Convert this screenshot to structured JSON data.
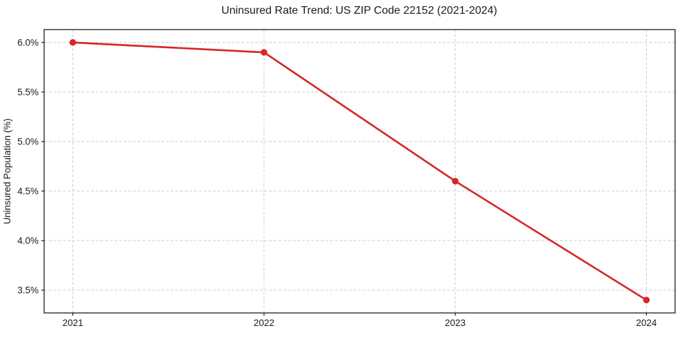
{
  "figure": {
    "title": "Uninsured Rate Trend: US ZIP Code 22152 (2021-2024)",
    "ylabel": "Uninsured Population (%)",
    "xlabel": ""
  },
  "chart_data": {
    "type": "line",
    "title": "Uninsured Rate Trend: US ZIP Code 22152 (2021-2024)",
    "xlabel": "",
    "ylabel": "Uninsured Population (%)",
    "x": [
      2021,
      2022,
      2023,
      2024
    ],
    "values": [
      6.0,
      5.9,
      4.6,
      3.4
    ],
    "xticks": [
      2021,
      2022,
      2023,
      2024
    ],
    "xtick_labels": [
      "2021",
      "2022",
      "2023",
      "2024"
    ],
    "yticks": [
      3.5,
      4.0,
      4.5,
      5.0,
      5.5,
      6.0
    ],
    "ytick_labels": [
      "3.5%",
      "4.0%",
      "4.5%",
      "5.0%",
      "5.5%",
      "6.0%"
    ],
    "xlim": [
      2020.85,
      2024.15
    ],
    "ylim": [
      3.27,
      6.13
    ],
    "grid": true,
    "grid_style": "dashed",
    "legend_position": "none",
    "line_color": "#d62728",
    "marker": "circle",
    "marker_radius": 4.8,
    "line_width": 2.7,
    "grid_color": "#cccccc",
    "spine_color": "#1a1a1a",
    "tick_color": "#1a1a1a",
    "background_color": "#ffffff"
  }
}
